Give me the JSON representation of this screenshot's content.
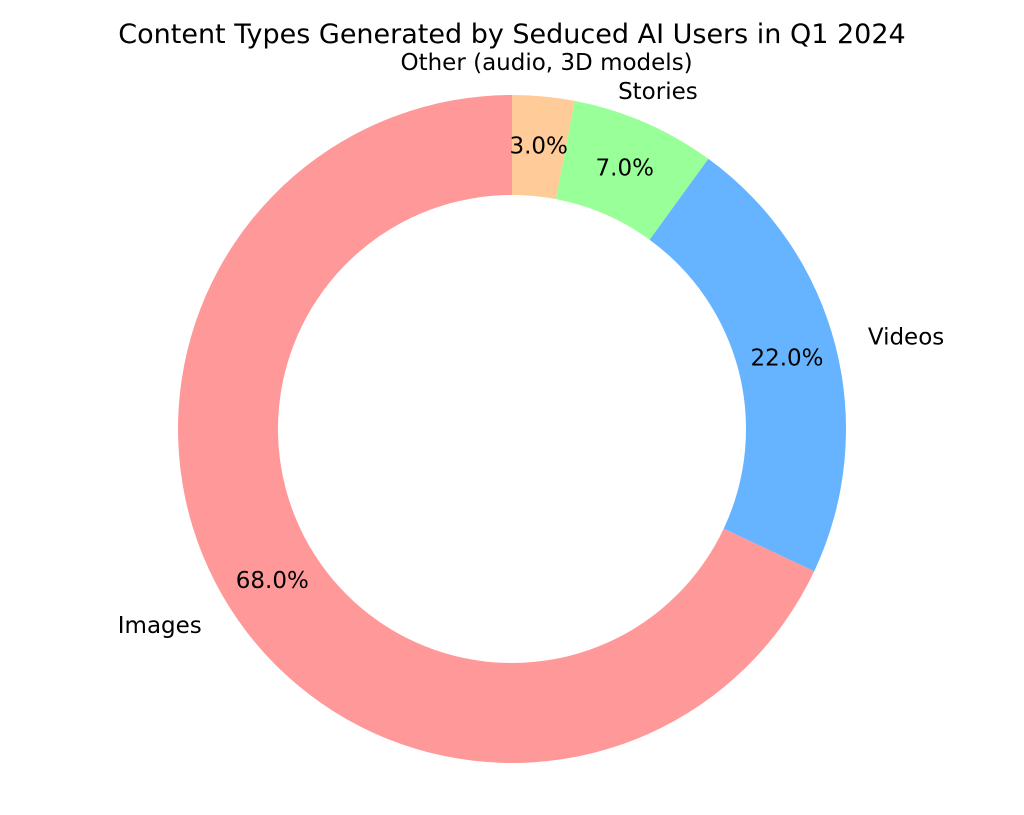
{
  "chart_data": {
    "type": "pie",
    "variant": "donut",
    "title": "Content Types Generated by Seduced AI Users in Q1 2024",
    "categories": [
      "Images",
      "Videos",
      "Stories",
      "Other (audio, 3D models)"
    ],
    "values": [
      68.0,
      22.0,
      7.0,
      3.0
    ],
    "value_labels": [
      "68.0%",
      "22.0%",
      "7.0%",
      "3.0%"
    ],
    "colors": [
      "#ff9999",
      "#66b3ff",
      "#99ff99",
      "#ffcc99"
    ],
    "start_angle": 90,
    "direction": "counterclockwise",
    "legend": "none"
  }
}
